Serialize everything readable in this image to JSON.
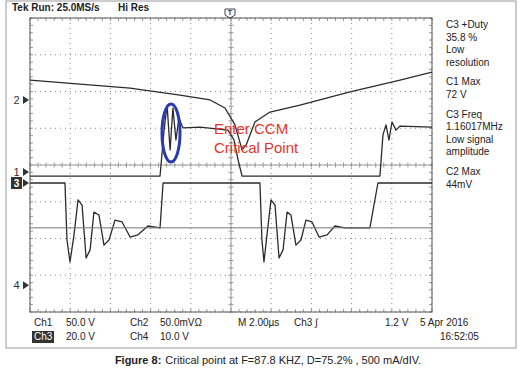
{
  "chart_data": {
    "type": "line",
    "header": [
      "Tek Run: 25.0MS/s",
      "Hi Res"
    ],
    "trigger_label": "T",
    "trigger_x": 9.95,
    "xlim": [
      0,
      20
    ],
    "ylim": [
      -4,
      4
    ],
    "xticks": [
      0,
      2,
      4,
      6,
      8,
      10,
      12,
      14,
      16,
      18,
      20
    ],
    "yticks": [
      -4,
      -3,
      -2,
      -1,
      0,
      1,
      2,
      3,
      4
    ],
    "grid": true,
    "tick_labels": false,
    "series": [
      {
        "name": "1",
        "color": "#2b2b2b",
        "ref": -0.19,
        "x": [
          0,
          6.47,
          6.67,
          6.82,
          6.97,
          7.11,
          7.26,
          7.41,
          7.61,
          8.46,
          9.85,
          10.15,
          10.35,
          10.55,
          17.41,
          17.56,
          17.71,
          17.86,
          18.01,
          18.21,
          18.41,
          20
        ],
        "values": [
          -0.3,
          -0.3,
          0.95,
          1.63,
          0.41,
          1.55,
          0.68,
          1.28,
          1.01,
          1.03,
          0.95,
          0.68,
          0.14,
          -0.3,
          -0.3,
          0.82,
          1.09,
          0.68,
          1.17,
          0.95,
          1.06,
          1.03
        ]
      },
      {
        "name": "2",
        "color": "#2b2b2b",
        "ref": 1.77,
        "x": [
          0,
          2.49,
          4.98,
          7.46,
          8.96,
          9.7,
          10.2,
          10.55,
          10.75,
          11.19,
          11.94,
          13.43,
          15.92,
          18.41,
          20
        ],
        "values": [
          2.31,
          2.2,
          2.09,
          1.9,
          1.77,
          1.55,
          1.09,
          0.41,
          0.54,
          1.17,
          1.44,
          1.63,
          1.99,
          2.31,
          2.53
        ]
      },
      {
        "name": "3",
        "color": "#2b2b2b",
        "ref": -0.49,
        "x": [
          0,
          1.74,
          1.84,
          1.99,
          2.19,
          2.39,
          2.59,
          2.79,
          2.99,
          3.18,
          3.43,
          3.68,
          3.93,
          4.23,
          4.58,
          4.98,
          5.37,
          5.87,
          6.47,
          6.62,
          11.44,
          11.54,
          11.64,
          11.79,
          11.99,
          12.19,
          12.39,
          12.59,
          12.79,
          12.98,
          13.23,
          13.48,
          13.73,
          14.03,
          14.38,
          14.78,
          15.17,
          15.67,
          16.27,
          16.91,
          17.31,
          20
        ],
        "values": [
          -0.49,
          -0.49,
          -2.04,
          -2.64,
          -1.9,
          -0.95,
          -1.09,
          -2.53,
          -2.31,
          -1.28,
          -1.36,
          -2.18,
          -2.04,
          -1.5,
          -1.55,
          -1.96,
          -1.9,
          -1.66,
          -1.71,
          -0.49,
          -0.49,
          -2.04,
          -2.64,
          -1.9,
          -0.95,
          -1.09,
          -2.53,
          -2.31,
          -1.28,
          -1.36,
          -2.18,
          -2.04,
          -1.5,
          -1.55,
          -1.96,
          -1.9,
          -1.66,
          -1.71,
          -1.71,
          -1.71,
          -0.49,
          -0.49
        ]
      },
      {
        "name": "4",
        "color": "#777777",
        "ref": -3.27,
        "x": [
          0,
          20
        ],
        "values": [
          -1.71,
          -1.71
        ]
      }
    ],
    "annotation": {
      "lines": [
        "Enter CCM",
        "Critical Point"
      ],
      "color": "#e5352b"
    },
    "measurements": [
      [
        "C3 +Duty",
        "35.8 %",
        "Low",
        "resolution"
      ],
      [
        "C1 Max",
        "72 V"
      ],
      [
        "C3 Freq",
        "1.16017MHz",
        "Low signal",
        "amplitude"
      ],
      [
        "C2 Max",
        "44mV"
      ]
    ],
    "settings": [
      [
        "Ch1",
        "50.0 V",
        "Ch2",
        "50.0mVΩ",
        "M 2.00µs",
        "Ch3 ∫",
        "1.2 V",
        "5 Apr 2016"
      ],
      [
        "Ch3",
        "20.0 V",
        "Ch4",
        "10.0 V",
        "16:52:05"
      ]
    ],
    "caption": {
      "label": "Figure 8:",
      "text": "Critical point at F=87.8 KHZ, D=75.2% , 500 mA/dIV."
    }
  }
}
